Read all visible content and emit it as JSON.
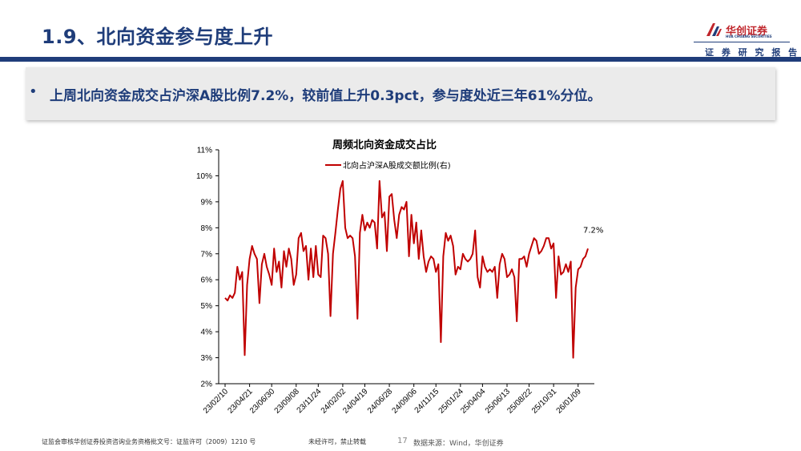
{
  "header": {
    "title": "1.9、北向资金参与度上升",
    "logo_cn": "华创证券",
    "logo_en": "HUA CHUANG SECURITIES",
    "subtitle": "证 券 研 究 报 告",
    "brand_red": "#c0252b",
    "brand_blue": "#1f3d7a"
  },
  "bullet": {
    "marker": "•",
    "text": "上周北向资金成交占沪深A股比例7.2%，较前值上升0.3pct，参与度处近三年61%分位。"
  },
  "footer": {
    "license": "证监会审核华创证券投资咨询业务资格批文号：证监许可（2009）1210 号",
    "notice": "未经许可，禁止转载",
    "page": "17",
    "source": "数据来源：Wind，华创证券"
  },
  "chart_data": {
    "type": "line",
    "title": "周频北向资金成交占比",
    "legend": "北向占沪深A股成交额比例(右)",
    "legend_position": "top",
    "series_color": "#c00000",
    "ylim": [
      2,
      11
    ],
    "yticks": [
      "2%",
      "3%",
      "4%",
      "5%",
      "6%",
      "7%",
      "8%",
      "9%",
      "10%",
      "11%"
    ],
    "xticks": [
      "23/02/10",
      "23/04/21",
      "23/06/30",
      "23/09/08",
      "23/11/24",
      "24/02/02",
      "24/04/19",
      "24/06/28",
      "24/09/06",
      "24/11/15",
      "25/01/24",
      "25/04/04",
      "25/06/13",
      "25/08/22",
      "25/10/31",
      "26/01/09"
    ],
    "annotation": "7.2%",
    "values": [
      5.3,
      5.2,
      5.4,
      5.3,
      5.5,
      6.5,
      6.0,
      6.3,
      3.1,
      5.8,
      6.8,
      7.3,
      7.0,
      6.8,
      5.1,
      6.6,
      7.0,
      6.5,
      6.2,
      5.8,
      7.2,
      6.3,
      6.7,
      5.7,
      7.1,
      6.5,
      7.2,
      6.8,
      5.8,
      6.2,
      7.6,
      7.8,
      7.1,
      7.3,
      6.0,
      7.2,
      6.1,
      7.3,
      6.2,
      6.1,
      7.7,
      7.6,
      7.0,
      4.6,
      7.0,
      7.8,
      8.7,
      9.5,
      9.8,
      8.0,
      7.6,
      7.7,
      7.6,
      6.9,
      4.5,
      7.8,
      8.5,
      7.9,
      8.2,
      8.0,
      8.3,
      8.2,
      7.2,
      9.8,
      8.4,
      8.6,
      7.1,
      9.2,
      9.3,
      8.3,
      7.6,
      8.5,
      8.8,
      8.7,
      9.0,
      6.9,
      8.5,
      7.4,
      8.2,
      6.8,
      7.9,
      6.9,
      6.3,
      6.7,
      6.9,
      6.8,
      6.3,
      6.6,
      3.6,
      6.9,
      7.8,
      7.5,
      7.7,
      7.3,
      6.2,
      6.5,
      6.4,
      7.0,
      6.8,
      6.7,
      6.8,
      7.0,
      7.9,
      6.1,
      5.7,
      6.9,
      6.5,
      6.3,
      6.4,
      6.3,
      6.5,
      5.3,
      6.6,
      7.0,
      6.8,
      6.1,
      6.2,
      6.4,
      6.1,
      4.4,
      6.8,
      6.8,
      6.9,
      6.5,
      7.0,
      7.3,
      7.6,
      7.5,
      7.0,
      7.1,
      7.3,
      7.6,
      7.6,
      7.2,
      7.4,
      5.3,
      6.9,
      6.2,
      6.3,
      6.6,
      6.3,
      6.7,
      3.0,
      5.7,
      6.4,
      6.5,
      6.8,
      6.9,
      7.2
    ]
  }
}
